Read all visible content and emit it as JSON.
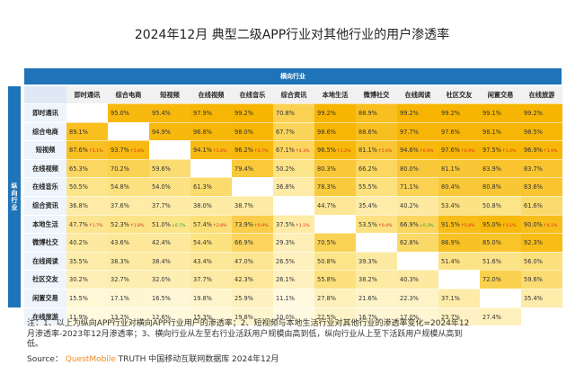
{
  "title": "2024年12月 典型二级APP行业对其他行业的用户渗透率",
  "chart_data": {
    "type": "heatmap",
    "title": "2024年12月 典型二级APP行业对其他行业的用户渗透率",
    "x_axis_label": "横向行业",
    "y_axis_label": "纵向行业",
    "columns": [
      "即时通讯",
      "综合电商",
      "短视频",
      "在线视频",
      "在线音乐",
      "综合资讯",
      "本地生活",
      "微博社交",
      "在线阅读",
      "社区交友",
      "闲置交易",
      "在线旅游"
    ],
    "rows": [
      {
        "name": "即时通讯",
        "cells": [
          {
            "v": ""
          },
          {
            "v": "95.0%"
          },
          {
            "v": "95.4%"
          },
          {
            "v": "97.9%"
          },
          {
            "v": "99.2%"
          },
          {
            "v": "70.8%"
          },
          {
            "v": "99.2%"
          },
          {
            "v": "88.9%"
          },
          {
            "v": "99.2%"
          },
          {
            "v": "99.2%"
          },
          {
            "v": "99.1%"
          },
          {
            "v": "99.2%"
          }
        ]
      },
      {
        "name": "综合电商",
        "cells": [
          {
            "v": "89.1%"
          },
          {
            "v": ""
          },
          {
            "v": "94.9%"
          },
          {
            "v": "96.8%"
          },
          {
            "v": "98.0%"
          },
          {
            "v": "67.7%"
          },
          {
            "v": "98.6%"
          },
          {
            "v": "88.6%"
          },
          {
            "v": "97.7%"
          },
          {
            "v": "97.6%"
          },
          {
            "v": "98.1%"
          },
          {
            "v": "98.5%"
          }
        ]
      },
      {
        "name": "短视频",
        "cells": [
          {
            "v": "87.6%",
            "c": "5.1%",
            "d": "up"
          },
          {
            "v": "93.7%",
            "c": "5.8%",
            "d": "up"
          },
          {
            "v": ""
          },
          {
            "v": "94.1%",
            "c": "5.8%",
            "d": "up"
          },
          {
            "v": "96.2%",
            "c": "0.7%",
            "d": "up"
          },
          {
            "v": "67.1%",
            "c": "4.3%",
            "d": "up"
          },
          {
            "v": "96.5%",
            "c": "2.2%",
            "d": "up"
          },
          {
            "v": "81.1%",
            "c": "5.6%",
            "d": "up"
          },
          {
            "v": "94.6%",
            "c": "6.9%",
            "d": "up"
          },
          {
            "v": "97.6%",
            "c": "6.9%",
            "d": "up"
          },
          {
            "v": "97.5%",
            "c": "1.0%",
            "d": "up"
          },
          {
            "v": "96.9%",
            "c": "1.9%",
            "d": "up"
          }
        ]
      },
      {
        "name": "在线视频",
        "cells": [
          {
            "v": "65.3%"
          },
          {
            "v": "70.2%"
          },
          {
            "v": "59.6%"
          },
          {
            "v": ""
          },
          {
            "v": "79.4%"
          },
          {
            "v": "50.2%"
          },
          {
            "v": "80.3%"
          },
          {
            "v": "66.2%"
          },
          {
            "v": "80.0%"
          },
          {
            "v": "81.1%"
          },
          {
            "v": "83.9%"
          },
          {
            "v": "83.7%"
          }
        ]
      },
      {
        "name": "在线音乐",
        "cells": [
          {
            "v": "50.5%"
          },
          {
            "v": "54.8%"
          },
          {
            "v": "54.0%"
          },
          {
            "v": "61.3%"
          },
          {
            "v": ""
          },
          {
            "v": "36.8%"
          },
          {
            "v": "78.3%"
          },
          {
            "v": "55.5%"
          },
          {
            "v": "71.1%"
          },
          {
            "v": "80.4%"
          },
          {
            "v": "80.8%"
          },
          {
            "v": "83.6%"
          }
        ]
      },
      {
        "name": "综合资讯",
        "cells": [
          {
            "v": "36.8%"
          },
          {
            "v": "37.6%"
          },
          {
            "v": "37.7%"
          },
          {
            "v": "38.0%"
          },
          {
            "v": "38.7%"
          },
          {
            "v": ""
          },
          {
            "v": "44.7%"
          },
          {
            "v": "35.4%"
          },
          {
            "v": "40.2%"
          },
          {
            "v": "53.4%"
          },
          {
            "v": "50.8%"
          },
          {
            "v": "61.6%"
          }
        ]
      },
      {
        "name": "本地生活",
        "cells": [
          {
            "v": "47.7%",
            "c": "1.7%",
            "d": "up"
          },
          {
            "v": "52.3%",
            "c": "1.8%",
            "d": "up"
          },
          {
            "v": "51.0%",
            "c": "0.7%",
            "d": "dn"
          },
          {
            "v": "57.4%",
            "c": "2.8%",
            "d": "up"
          },
          {
            "v": "73.9%",
            "c": "0.9%",
            "d": "up"
          },
          {
            "v": "37.5%",
            "c": "1.1%",
            "d": "up"
          },
          {
            "v": ""
          },
          {
            "v": "53.5%",
            "c": "0.4%",
            "d": "up"
          },
          {
            "v": "66.9%",
            "c": "0.3%",
            "d": "dn"
          },
          {
            "v": "91.5%",
            "c": "5.8%",
            "d": "up"
          },
          {
            "v": "95.0%",
            "c": "3.1%",
            "d": "up"
          },
          {
            "v": "90.0%",
            "c": "4.1%",
            "d": "up"
          }
        ]
      },
      {
        "name": "微博社交",
        "cells": [
          {
            "v": "40.2%"
          },
          {
            "v": "43.6%"
          },
          {
            "v": "42.4%"
          },
          {
            "v": "54.4%"
          },
          {
            "v": "66.9%"
          },
          {
            "v": "29.3%"
          },
          {
            "v": "70.5%"
          },
          {
            "v": ""
          },
          {
            "v": "62.8%"
          },
          {
            "v": "86.9%"
          },
          {
            "v": "85.0%"
          },
          {
            "v": "92.3%"
          }
        ]
      },
      {
        "name": "在线阅读",
        "cells": [
          {
            "v": "35.5%"
          },
          {
            "v": "38.3%"
          },
          {
            "v": "38.4%"
          },
          {
            "v": "43.4%"
          },
          {
            "v": "47.0%"
          },
          {
            "v": "26.5%"
          },
          {
            "v": "50.8%"
          },
          {
            "v": "39.3%"
          },
          {
            "v": ""
          },
          {
            "v": "51.4%"
          },
          {
            "v": "51.6%"
          },
          {
            "v": "56.0%"
          }
        ]
      },
      {
        "name": "社区交友",
        "cells": [
          {
            "v": "30.2%"
          },
          {
            "v": "32.7%"
          },
          {
            "v": "32.0%"
          },
          {
            "v": "37.7%"
          },
          {
            "v": "42.3%"
          },
          {
            "v": "26.1%"
          },
          {
            "v": "55.8%"
          },
          {
            "v": "38.2%"
          },
          {
            "v": "40.3%"
          },
          {
            "v": ""
          },
          {
            "v": "72.0%"
          },
          {
            "v": "59.6%"
          }
        ]
      },
      {
        "name": "闲置交易",
        "cells": [
          {
            "v": "15.5%"
          },
          {
            "v": "17.1%"
          },
          {
            "v": "16.5%"
          },
          {
            "v": "19.8%"
          },
          {
            "v": "25.9%"
          },
          {
            "v": "11.1%"
          },
          {
            "v": "27.8%"
          },
          {
            "v": "21.6%"
          },
          {
            "v": "22.3%"
          },
          {
            "v": "37.1%"
          },
          {
            "v": ""
          },
          {
            "v": "35.4%"
          }
        ]
      },
      {
        "name": "在线旅游",
        "cells": [
          {
            "v": "11.9%"
          },
          {
            "v": "13.2%"
          },
          {
            "v": "12.6%"
          },
          {
            "v": "15.3%"
          },
          {
            "v": "19.8%"
          },
          {
            "v": "10.0%"
          },
          {
            "v": "22.5%"
          },
          {
            "v": "16.7%"
          },
          {
            "v": "17.0%"
          },
          {
            "v": "23.7%"
          },
          {
            "v": "27.4%"
          },
          {
            "v": ""
          }
        ]
      }
    ]
  },
  "note_lines": [
    "注：1、以上为纵向APP行业对横向APP行业用户的渗透率；2、短视频与本地生活行业对其他行业的渗透率变化=2024年12",
    "月渗透率-2023年12月渗透率；3、横向行业从左至右行业活跃用户规模由高到低，纵向行业从上至下活跃用户规模从高到",
    "低。"
  ],
  "source": {
    "label": "Source：",
    "brand": "QuestMobile",
    "rest": " TRUTH 中国移动互联网数据库 2024年12月"
  }
}
